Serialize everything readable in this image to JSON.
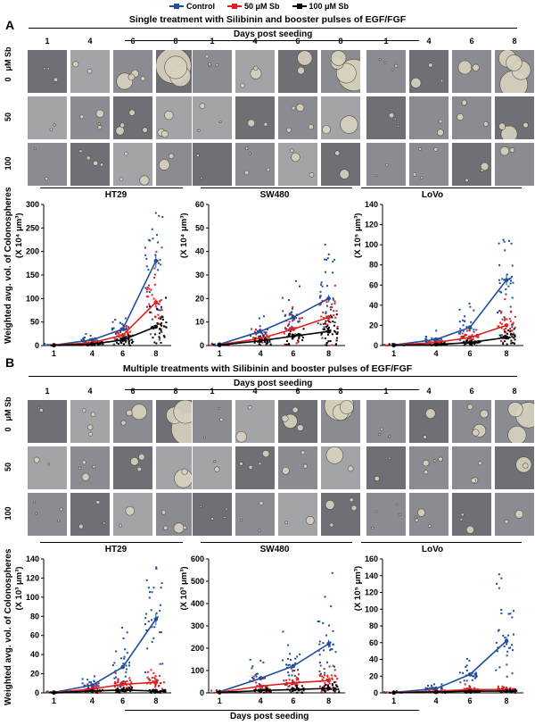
{
  "legend": [
    {
      "label": "Control",
      "color": "#1f4e9c"
    },
    {
      "label": "50 μM Sb",
      "color": "#e02020"
    },
    {
      "label": "100 μM Sb",
      "color": "#000000"
    }
  ],
  "panelA": {
    "letter": "A",
    "title": "Single treatment with Silibinin and booster pulses of EGF/FGF",
    "days_label": "Days post seeding",
    "days": [
      "1",
      "4",
      "6",
      "8"
    ],
    "row_header": "μM Sb",
    "rows": [
      "0",
      "50",
      "100"
    ],
    "cell_lines": [
      "HT29",
      "SW480",
      "LoVo"
    ],
    "y_label": "Weighted avg. vol. of Colonospheres",
    "y_units": [
      "(X 10⁴ μm³)",
      "(X 10⁴ μm³)",
      "(X 10⁵ μm³)"
    ]
  },
  "panelB": {
    "letter": "B",
    "title": "Multiple treatments with Silibinin and booster pulses of EGF/FGF",
    "days_label": "Days post seeding",
    "days": [
      "1",
      "4",
      "6",
      "8"
    ],
    "row_header": "μM Sb",
    "rows": [
      "0",
      "50",
      "100"
    ],
    "cell_lines": [
      "HT29",
      "SW480",
      "LoVo"
    ],
    "y_label": "Weighted avg. vol. of Colonospheres",
    "y_units": [
      "(X 10³ μm³)",
      "(X 10³ μm³)",
      "(X 10⁵ μm³)"
    ],
    "bottom_label": "Days post seeding"
  },
  "chart_data": [
    {
      "type": "line",
      "panel": "A",
      "title": "HT29",
      "ylabel": "(X 10⁴ μm³)",
      "x": [
        "1",
        "4",
        "6",
        "8"
      ],
      "ylim": [
        0,
        300
      ],
      "yticks": [
        0,
        50,
        100,
        150,
        200,
        250,
        300
      ],
      "series": [
        {
          "name": "Control",
          "values": [
            1,
            12,
            35,
            180
          ]
        },
        {
          "name": "50 μM Sb",
          "values": [
            0.5,
            6,
            22,
            92
          ]
        },
        {
          "name": "100 μM Sb",
          "values": [
            0.3,
            3,
            12,
            40
          ]
        }
      ]
    },
    {
      "type": "line",
      "panel": "A",
      "title": "SW480",
      "ylabel": "(X 10⁴ μm³)",
      "x": [
        "1",
        "4",
        "6",
        "8"
      ],
      "ylim": [
        0,
        60
      ],
      "yticks": [
        0,
        10,
        20,
        30,
        40,
        50,
        60
      ],
      "series": [
        {
          "name": "Control",
          "values": [
            0.5,
            6,
            12,
            20
          ]
        },
        {
          "name": "50 μM Sb",
          "values": [
            0.3,
            3,
            7,
            12
          ]
        },
        {
          "name": "100 μM Sb",
          "values": [
            0.2,
            2,
            4,
            6
          ]
        }
      ]
    },
    {
      "type": "line",
      "panel": "A",
      "title": "LoVo",
      "ylabel": "(X 10⁵ μm³)",
      "x": [
        "1",
        "4",
        "6",
        "8"
      ],
      "ylim": [
        0,
        140
      ],
      "yticks": [
        0,
        20,
        40,
        60,
        80,
        100,
        120,
        140
      ],
      "series": [
        {
          "name": "Control",
          "values": [
            0.5,
            6,
            18,
            65
          ]
        },
        {
          "name": "50 μM Sb",
          "values": [
            0.3,
            3,
            8,
            20
          ]
        },
        {
          "name": "100 μM Sb",
          "values": [
            0.2,
            1,
            3,
            8
          ]
        }
      ]
    },
    {
      "type": "line",
      "panel": "B",
      "title": "HT29",
      "ylabel": "(X 10³ μm³)",
      "x": [
        "1",
        "4",
        "6",
        "8"
      ],
      "ylim": [
        0,
        140
      ],
      "yticks": [
        0,
        20,
        40,
        60,
        80,
        100,
        120,
        140
      ],
      "series": [
        {
          "name": "Control",
          "values": [
            0.5,
            8,
            27,
            77
          ]
        },
        {
          "name": "50 μM Sb",
          "values": [
            0.3,
            4,
            9,
            11
          ]
        },
        {
          "name": "100 μM Sb",
          "values": [
            0.2,
            2,
            3,
            2
          ]
        }
      ]
    },
    {
      "type": "line",
      "panel": "B",
      "title": "SW480",
      "ylabel": "(X 10³ μm³)",
      "x": [
        "1",
        "4",
        "6",
        "8"
      ],
      "ylim": [
        0,
        600
      ],
      "yticks": [
        0,
        100,
        200,
        300,
        400,
        500,
        600
      ],
      "series": [
        {
          "name": "Control",
          "values": [
            5,
            65,
            120,
            220
          ]
        },
        {
          "name": "50 μM Sb",
          "values": [
            3,
            30,
            45,
            55
          ]
        },
        {
          "name": "100 μM Sb",
          "values": [
            2,
            10,
            15,
            20
          ]
        }
      ]
    },
    {
      "type": "line",
      "panel": "B",
      "title": "LoVo",
      "ylabel": "(X 10⁵ μm³)",
      "x": [
        "1",
        "4",
        "6",
        "8"
      ],
      "ylim": [
        0,
        160
      ],
      "yticks": [
        0,
        20,
        40,
        60,
        80,
        100,
        120,
        140,
        160
      ],
      "series": [
        {
          "name": "Control",
          "values": [
            0.5,
            5,
            22,
            62
          ]
        },
        {
          "name": "50 μM Sb",
          "values": [
            0.3,
            2,
            4,
            4
          ]
        },
        {
          "name": "100 μM Sb",
          "values": [
            0.2,
            1,
            2,
            2
          ]
        }
      ]
    }
  ]
}
